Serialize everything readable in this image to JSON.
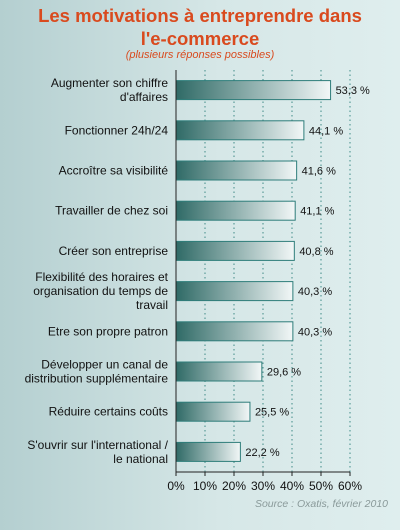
{
  "chart_data": {
    "type": "bar",
    "orientation": "horizontal",
    "title": "Les motivations à entreprendre dans l'e-commerce",
    "subtitle": "(plusieurs réponses possibles)",
    "categories": [
      "Augmenter son chiffre d'affaires",
      "Fonctionner 24h/24",
      "Accroître sa visibilité",
      "Travailler de chez soi",
      "Créer son entreprise",
      "Flexibilité des horaires et organisation du temps de travail",
      "Etre son propre patron",
      "Développer un canal de distribution supplémentaire",
      "Réduire certains coûts",
      "S'ouvrir sur l'international / le national"
    ],
    "category_lines": [
      [
        "Augmenter son chiffre",
        "d'affaires"
      ],
      [
        "Fonctionner 24h/24"
      ],
      [
        "Accroître sa visibilité"
      ],
      [
        "Travailler de chez soi"
      ],
      [
        "Créer son entreprise"
      ],
      [
        "Flexibilité des horaires et",
        "organisation du temps de",
        "travail"
      ],
      [
        "Etre son propre patron"
      ],
      [
        "Développer un canal de",
        "distribution supplémentaire"
      ],
      [
        "Réduire certains coûts"
      ],
      [
        "S'ouvrir sur l'international /",
        "le national"
      ]
    ],
    "values": [
      53.3,
      44.1,
      41.6,
      41.1,
      40.8,
      40.3,
      40.3,
      29.6,
      25.5,
      22.2
    ],
    "value_labels": [
      "53,3 %",
      "44,1 %",
      "41,6 %",
      "41,1 %",
      "40,8 %",
      "40,3 %",
      "40,3 %",
      "29,6 %",
      "25,5 %",
      "22,2 %"
    ],
    "xlim": [
      0,
      60
    ],
    "xticks": [
      0,
      10,
      20,
      30,
      40,
      50,
      60
    ],
    "xtick_labels": [
      "0%",
      "10%",
      "20%",
      "30%",
      "40%",
      "50%",
      "60%"
    ],
    "grid": true,
    "source": "Source : Oxatis, février 2010",
    "colors": {
      "title": "#d94a1e",
      "bar_dark": "#2f6a66",
      "bar_light": "#f2f7f7",
      "bar_border": "#2e7d7a",
      "grid": "#3f8b87"
    }
  }
}
